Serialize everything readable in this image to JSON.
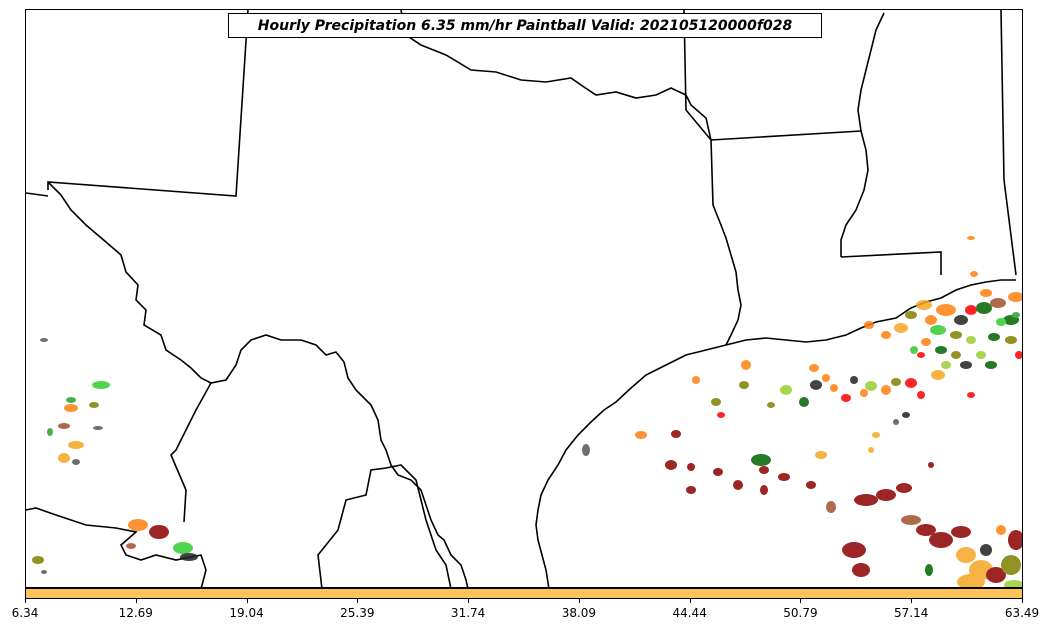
{
  "title": "Hourly Precipitation 6.35 mm/hr Paintball Valid: 202105120000f028",
  "colorbar": {
    "color": "#ffc25a",
    "ticks": [
      "6.34",
      "12.69",
      "19.04",
      "25.39",
      "31.74",
      "38.09",
      "44.44",
      "50.79",
      "57.14",
      "63.49"
    ]
  },
  "colors": {
    "map_background": "#ffffff",
    "boundaries": "#000000",
    "paintball_palette": [
      "#ff0000",
      "#ff7f0e",
      "#f5a623",
      "#2ca02c",
      "#006400",
      "#32cd32",
      "#8b0000",
      "#a0522d",
      "#808000",
      "#9acd32",
      "#555555",
      "#222222"
    ]
  },
  "chart_data": {
    "type": "map",
    "projection": "geographic",
    "region": "Texas and Gulf of Mexico",
    "colorbar_range": [
      6.34,
      63.49
    ],
    "features": [
      "state boundaries",
      "coastline",
      "international border",
      "precipitation paintball blobs"
    ]
  }
}
